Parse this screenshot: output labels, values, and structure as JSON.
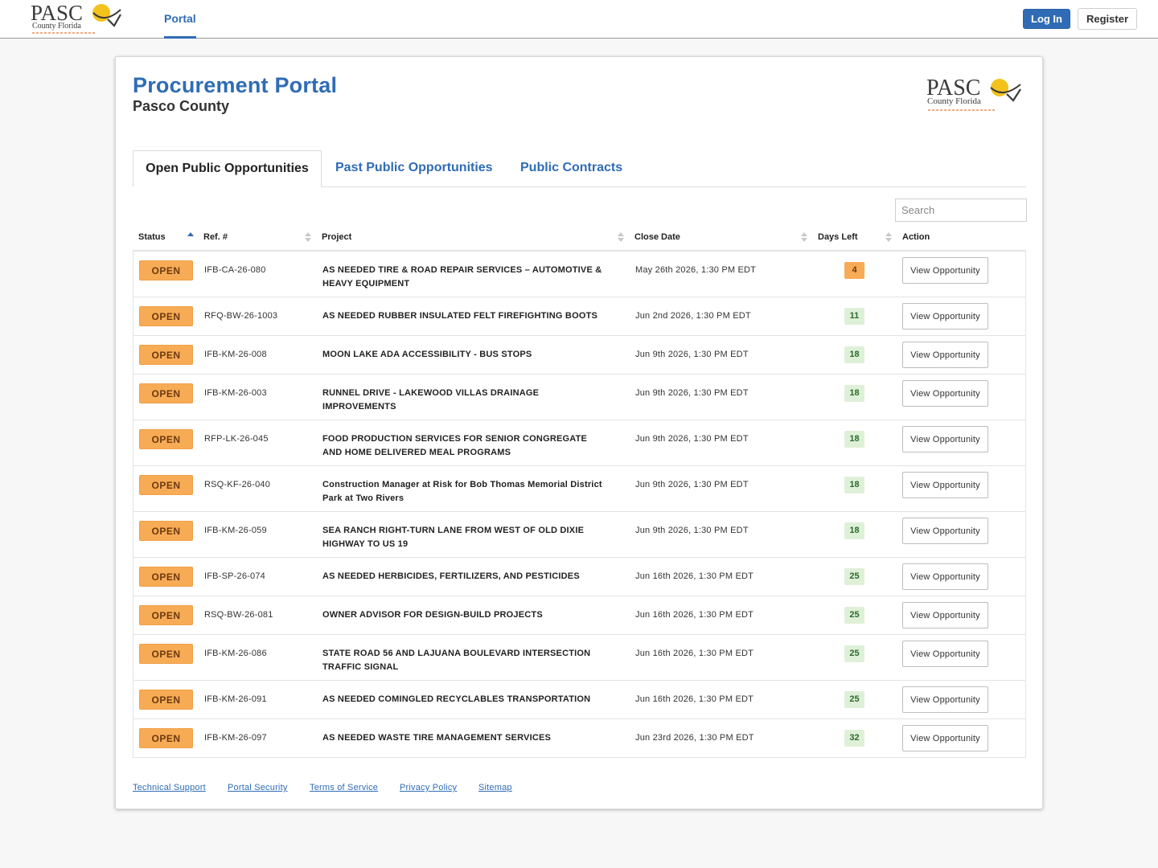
{
  "header": {
    "logo_text": "PASCO",
    "logo_subtext": "County Florida",
    "nav_portal": "Portal",
    "login_label": "Log In",
    "register_label": "Register"
  },
  "portal": {
    "title": "Procurement Portal",
    "subtitle": "Pasco County"
  },
  "tabs": [
    {
      "label": "Open Public Opportunities",
      "active": true
    },
    {
      "label": "Past Public Opportunities",
      "active": false
    },
    {
      "label": "Public Contracts",
      "active": false
    }
  ],
  "search": {
    "placeholder": "Search"
  },
  "table": {
    "columns": [
      "Status",
      "Ref. #",
      "Project",
      "Close Date",
      "Days Left",
      "Action"
    ],
    "rows": [
      {
        "status": "OPEN",
        "ref": "IFB-CA-26-080",
        "project_l1": "AS NEEDED TIRE & ROAD REPAIR SERVICES – AUTOMOTIVE &",
        "project_l2": "HEAVY EQUIPMENT",
        "close": "May 26th 2026, 1:30 PM EDT",
        "days": "4",
        "action": "View Opportunity"
      },
      {
        "status": "OPEN",
        "ref": "RFQ-BW-26-1003",
        "project_l1": "AS NEEDED RUBBER INSULATED FELT FIREFIGHTING BOOTS",
        "project_l2": "",
        "close": "Jun 2nd 2026, 1:30 PM EDT",
        "days": "11",
        "action": "View Opportunity"
      },
      {
        "status": "OPEN",
        "ref": "IFB-KM-26-008",
        "project_l1": "MOON LAKE ADA ACCESSIBILITY - BUS STOPS",
        "project_l2": "",
        "close": "Jun 9th 2026, 1:30 PM EDT",
        "days": "18",
        "action": "View Opportunity"
      },
      {
        "status": "OPEN",
        "ref": "IFB-KM-26-003",
        "project_l1": "RUNNEL DRIVE - LAKEWOOD VILLAS DRAINAGE",
        "project_l2": "IMPROVEMENTS",
        "close": "Jun 9th 2026, 1:30 PM EDT",
        "days": "18",
        "action": "View Opportunity"
      },
      {
        "status": "OPEN",
        "ref": "RFP-LK-26-045",
        "project_l1": "FOOD PRODUCTION SERVICES FOR SENIOR CONGREGATE",
        "project_l2": "AND HOME DELIVERED MEAL PROGRAMS",
        "close": "Jun 9th 2026, 1:30 PM EDT",
        "days": "18",
        "action": "View Opportunity"
      },
      {
        "status": "OPEN",
        "ref": "RSQ-KF-26-040",
        "project_l1": "Construction Manager at Risk for Bob Thomas Memorial District",
        "project_l2": "Park at Two Rivers",
        "close": "Jun 9th 2026, 1:30 PM EDT",
        "days": "18",
        "action": "View Opportunity"
      },
      {
        "status": "OPEN",
        "ref": "IFB-KM-26-059",
        "project_l1": "SEA RANCH RIGHT-TURN LANE FROM WEST OF OLD DIXIE",
        "project_l2": "HIGHWAY TO US 19",
        "close": "Jun 9th 2026, 1:30 PM EDT",
        "days": "18",
        "action": "View Opportunity"
      },
      {
        "status": "OPEN",
        "ref": "IFB-SP-26-074",
        "project_l1": "AS NEEDED HERBICIDES, FERTILIZERS, AND PESTICIDES",
        "project_l2": "",
        "close": "Jun 16th 2026, 1:30 PM EDT",
        "days": "25",
        "action": "View Opportunity"
      },
      {
        "status": "OPEN",
        "ref": "RSQ-BW-26-081",
        "project_l1": "OWNER ADVISOR FOR DESIGN-BUILD PROJECTS",
        "project_l2": "",
        "close": "Jun 16th 2026, 1:30 PM EDT",
        "days": "25",
        "action": "View Opportunity"
      },
      {
        "status": "OPEN",
        "ref": "IFB-KM-26-086",
        "project_l1": "STATE ROAD 56 AND LAJUANA BOULEVARD INTERSECTION",
        "project_l2": "TRAFFIC SIGNAL",
        "close": "Jun 16th 2026, 1:30 PM EDT",
        "days": "25",
        "action": "View Opportunity"
      },
      {
        "status": "OPEN",
        "ref": "IFB-KM-26-091",
        "project_l1": "AS NEEDED COMINGLED RECYCLABLES TRANSPORTATION",
        "project_l2": "",
        "close": "Jun 16th 2026, 1:30 PM EDT",
        "days": "25",
        "action": "View Opportunity"
      },
      {
        "status": "OPEN",
        "ref": "IFB-KM-26-097",
        "project_l1": "AS NEEDED WASTE TIRE MANAGEMENT SERVICES",
        "project_l2": "",
        "close": "Jun 23rd 2026, 1:30 PM EDT",
        "days": "32",
        "action": "View Opportunity"
      }
    ]
  },
  "footer": {
    "links": [
      "Technical Support",
      "Portal Security",
      "Terms of Service",
      "Privacy Policy",
      "Sitemap"
    ]
  },
  "colors": {
    "brand_blue": "#2f6cb5",
    "open_badge": "#f8ab55",
    "days_ok": "#dff0d8",
    "days_warn": "#f8ab55"
  }
}
